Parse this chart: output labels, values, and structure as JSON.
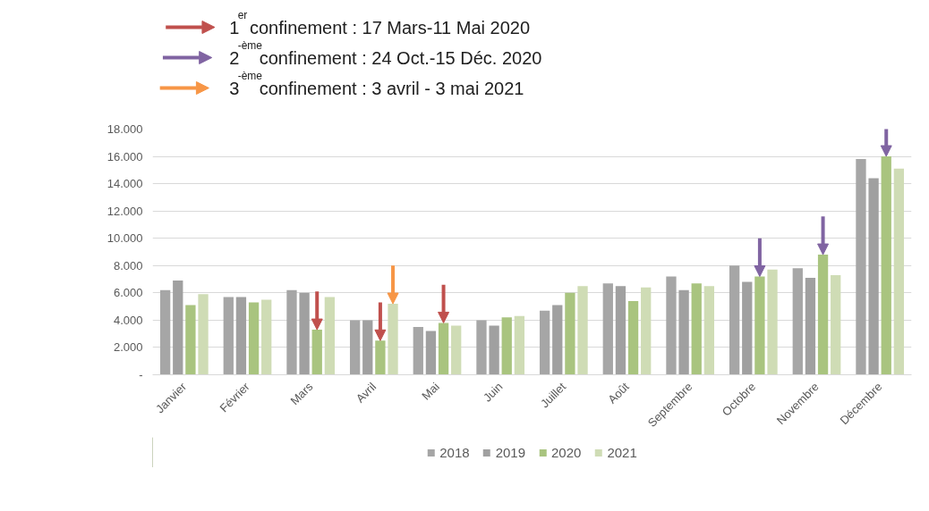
{
  "chart_data": {
    "type": "bar",
    "categories": [
      "Janvier",
      "Février",
      "Mars",
      "Avril",
      "Mai",
      "Juin",
      "Juillet",
      "Août",
      "Septembre",
      "Octobre",
      "Novembre",
      "Décembre"
    ],
    "series": [
      {
        "name": "2018",
        "color": "#a6a6a6",
        "values": [
          6200,
          5700,
          6200,
          4000,
          3500,
          4000,
          4700,
          6700,
          7200,
          8000,
          7800,
          15800
        ]
      },
      {
        "name": "2019",
        "color": "#a0a0a0",
        "values": [
          6900,
          5700,
          6000,
          4000,
          3200,
          3600,
          5100,
          6500,
          6200,
          6800,
          7100,
          14400
        ]
      },
      {
        "name": "2020",
        "color": "#a9c47f",
        "values": [
          5100,
          5300,
          3300,
          2500,
          3800,
          4200,
          6000,
          5400,
          6700,
          7200,
          8800,
          16000
        ]
      },
      {
        "name": "2021",
        "color": "#cfdcb5",
        "values": [
          5900,
          5500,
          5700,
          5200,
          3600,
          4300,
          6500,
          6400,
          6500,
          7700,
          7300,
          15100
        ]
      }
    ],
    "ylim": [
      0,
      18000
    ],
    "yticks": [
      {
        "value": 0,
        "label": "-"
      },
      {
        "value": 2000,
        "label": "2.000"
      },
      {
        "value": 4000,
        "label": "4.000"
      },
      {
        "value": 6000,
        "label": "6.000"
      },
      {
        "value": 8000,
        "label": "8.000"
      },
      {
        "value": 10000,
        "label": "10.000"
      },
      {
        "value": 12000,
        "label": "12.000"
      },
      {
        "value": 14000,
        "label": "14.000"
      },
      {
        "value": 16000,
        "label": "16.000"
      },
      {
        "value": 18000,
        "label": "18.000"
      }
    ],
    "grid": "y",
    "legend": "bottom",
    "annotations": [
      "1$^{er}$ confinement : 17 Mars-11 Mai 2020",
      "2$^{-ème}$ confinement : 24 Oct.-15 Déc. 2020",
      "3$^{-ème}$ confinement : 3 avril - 3 mai 2021"
    ]
  }
}
